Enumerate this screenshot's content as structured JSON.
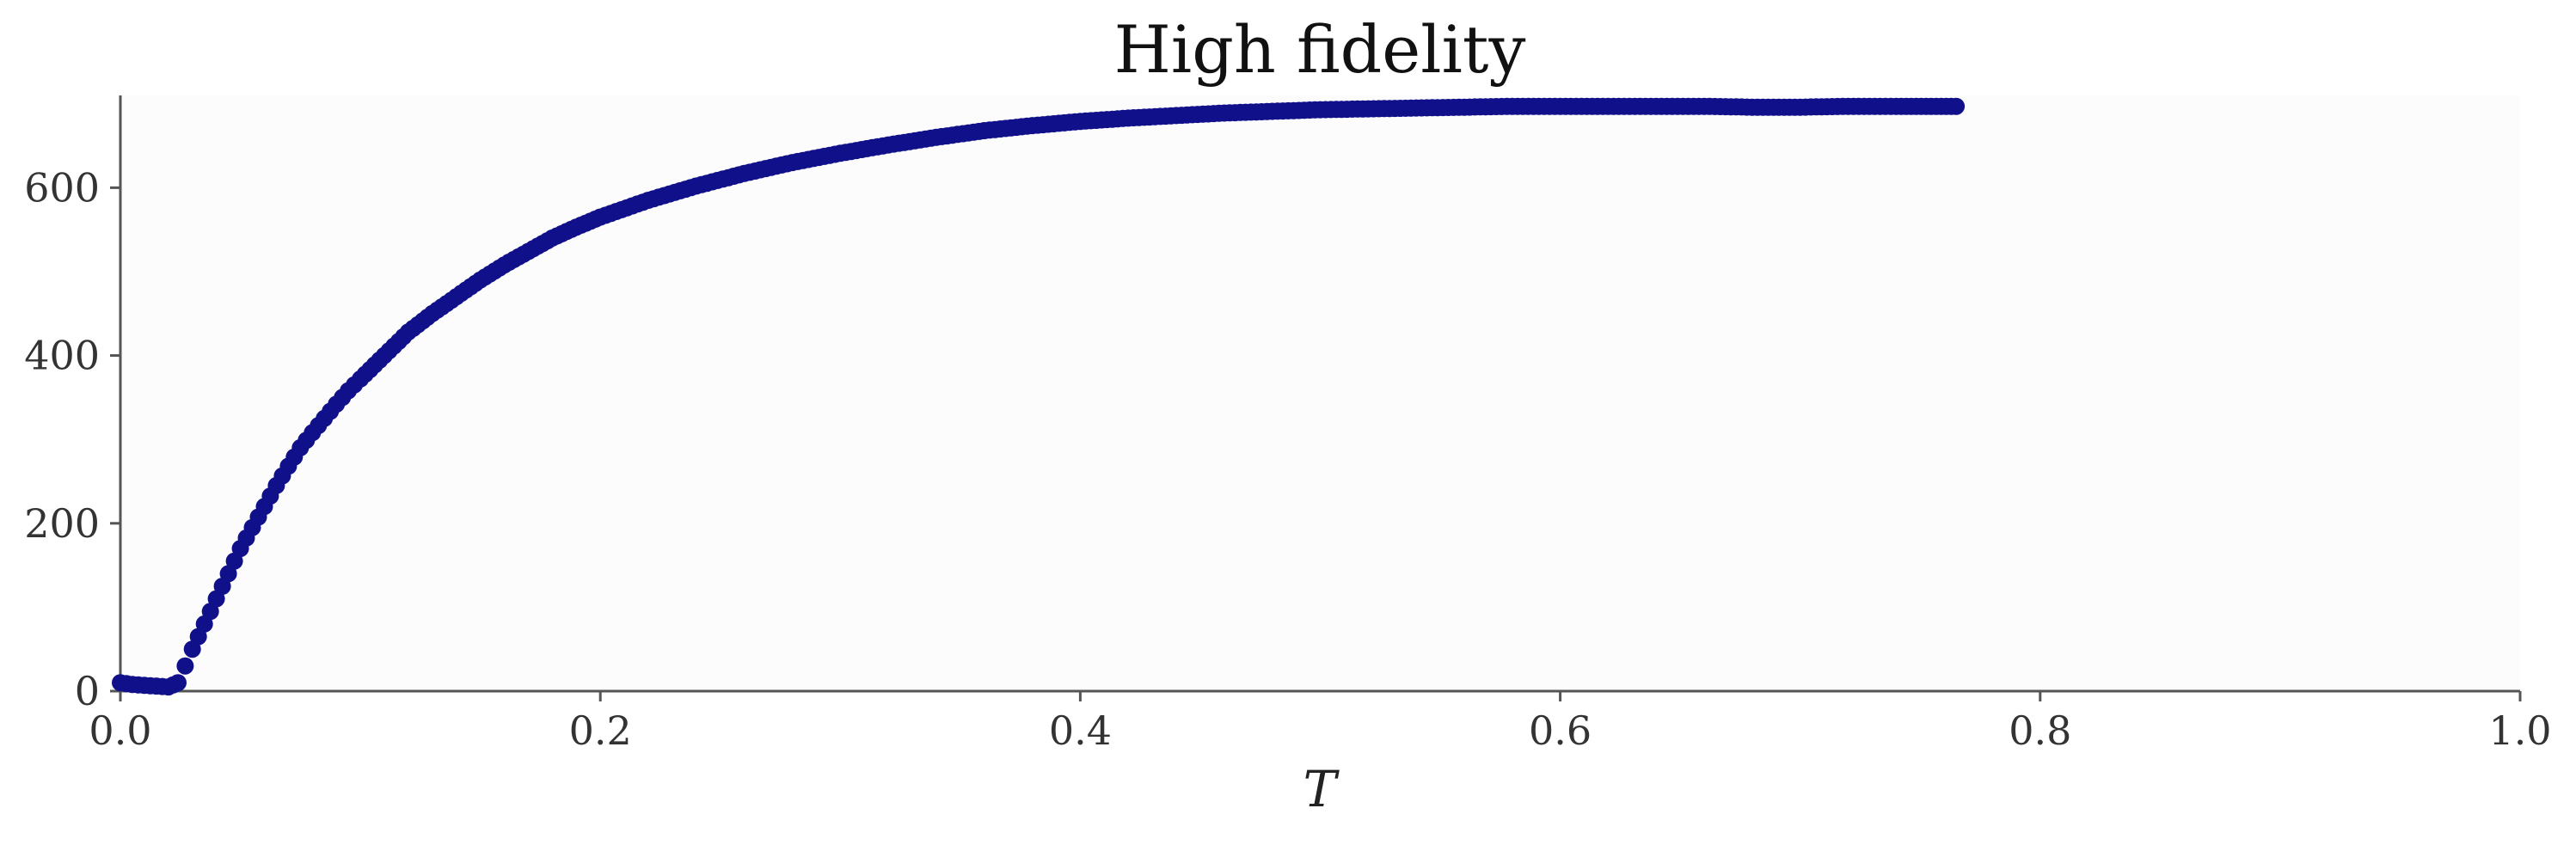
{
  "chart_data": {
    "type": "scatter",
    "title": "High fidelity",
    "xlabel": "T",
    "ylabel": "",
    "xlim": [
      0.0,
      1.0
    ],
    "ylim": [
      0,
      710
    ],
    "xticks": [
      0.0,
      0.2,
      0.4,
      0.6,
      0.8,
      1.0
    ],
    "xtick_labels": [
      "0.0",
      "0.2",
      "0.4",
      "0.6",
      "0.8",
      "1.0"
    ],
    "yticks": [
      0,
      200,
      400,
      600
    ],
    "ytick_labels": [
      "0",
      "200",
      "400",
      "600"
    ],
    "grid": false,
    "marker_color": "#10108a",
    "plot_background": "#fcfcfd",
    "series": [
      {
        "x": [
          0.0,
          0.005,
          0.01,
          0.015,
          0.02,
          0.024,
          0.027,
          0.03,
          0.035,
          0.04,
          0.045,
          0.05,
          0.055,
          0.06,
          0.065,
          0.07,
          0.075,
          0.08,
          0.085,
          0.09,
          0.095,
          0.1,
          0.11,
          0.12,
          0.13,
          0.14,
          0.15,
          0.16,
          0.17,
          0.18,
          0.19,
          0.2,
          0.22,
          0.24,
          0.26,
          0.28,
          0.3,
          0.32,
          0.34,
          0.36,
          0.38,
          0.4,
          0.42,
          0.44,
          0.46,
          0.48,
          0.5,
          0.52,
          0.54,
          0.56,
          0.58,
          0.6,
          0.62,
          0.64,
          0.66,
          0.68,
          0.7,
          0.72,
          0.74,
          0.765
        ],
        "y": [
          10,
          8,
          7,
          6,
          5,
          10,
          30,
          50,
          80,
          110,
          140,
          170,
          195,
          220,
          245,
          268,
          290,
          308,
          325,
          342,
          358,
          372,
          400,
          428,
          450,
          470,
          490,
          508,
          524,
          540,
          553,
          565,
          585,
          602,
          617,
          630,
          641,
          651,
          660,
          668,
          674,
          679,
          683,
          686,
          689,
          691,
          693,
          694,
          695,
          696,
          697,
          697,
          697,
          697,
          697,
          696,
          696,
          697,
          697,
          697
        ]
      }
    ]
  }
}
